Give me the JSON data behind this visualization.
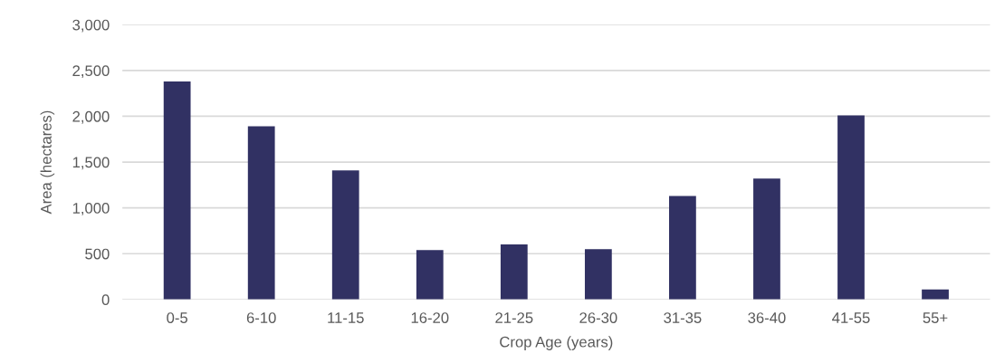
{
  "chart_data": {
    "type": "bar",
    "xlabel": "Crop Age (years)",
    "ylabel": "Area (hectares)",
    "categories": [
      "0-5",
      "6-10",
      "11-15",
      "16-20",
      "21-25",
      "26-30",
      "31-35",
      "36-40",
      "41-55",
      "55+"
    ],
    "values": [
      2380,
      1890,
      1410,
      540,
      600,
      550,
      1130,
      1320,
      2010,
      110
    ],
    "color": "#313163",
    "ylim": [
      0,
      3000
    ],
    "yticks": [
      {
        "value": 0,
        "label": "0"
      },
      {
        "value": 500,
        "label": "500"
      },
      {
        "value": 1000,
        "label": "1,000"
      },
      {
        "value": 1500,
        "label": "1,500"
      },
      {
        "value": 2000,
        "label": "2,000"
      },
      {
        "value": 2500,
        "label": "2,500"
      },
      {
        "value": 3000,
        "label": "3,000"
      }
    ],
    "grid": "y",
    "legend": false
  }
}
